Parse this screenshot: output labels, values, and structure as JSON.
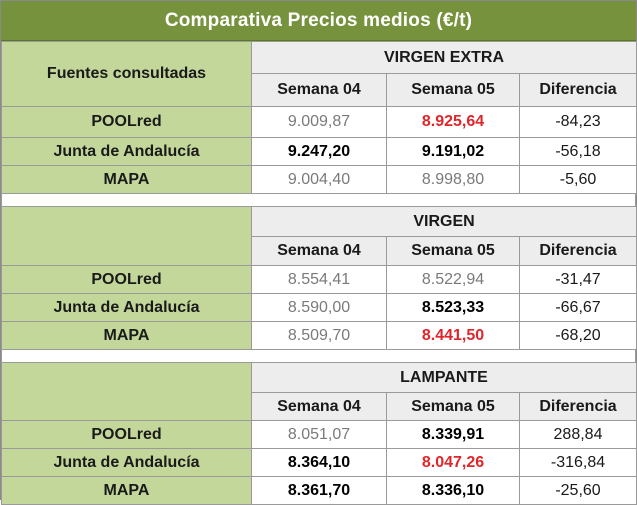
{
  "title": "Comparativa Precios  medios (€/t)",
  "sources_header": "Fuentes consultadas",
  "columns": [
    "Semana 04",
    "Semana 05",
    "Diferencia"
  ],
  "sections": [
    {
      "label": "VIRGEN EXTRA",
      "rows": [
        {
          "source": "POOLred",
          "w04": "9.009,87",
          "w05": "8.925,64",
          "diff": "-84,23",
          "w04_style": "normal",
          "w05_style": "red"
        },
        {
          "source": "Junta de Andalucía",
          "w04": "9.247,20",
          "w05": "9.191,02",
          "diff": "-56,18",
          "w04_style": "bold",
          "w05_style": "bold"
        },
        {
          "source": "MAPA",
          "w04": "9.004,40",
          "w05": "8.998,80",
          "diff": "-5,60",
          "w04_style": "normal",
          "w05_style": "normal"
        }
      ]
    },
    {
      "label": "VIRGEN",
      "rows": [
        {
          "source": "POOLred",
          "w04": "8.554,41",
          "w05": "8.522,94",
          "diff": "-31,47",
          "w04_style": "normal",
          "w05_style": "normal"
        },
        {
          "source": "Junta de Andalucía",
          "w04": "8.590,00",
          "w05": "8.523,33",
          "diff": "-66,67",
          "w04_style": "normal",
          "w05_style": "bold"
        },
        {
          "source": "MAPA",
          "w04": "8.509,70",
          "w05": "8.441,50",
          "diff": "-68,20",
          "w04_style": "normal",
          "w05_style": "red"
        }
      ]
    },
    {
      "label": "LAMPANTE",
      "rows": [
        {
          "source": "POOLred",
          "w04": "8.051,07",
          "w05": "8.339,91",
          "diff": "288,84",
          "w04_style": "normal",
          "w05_style": "bold"
        },
        {
          "source": "Junta de Andalucía",
          "w04": "8.364,10",
          "w05": "8.047,26",
          "diff": "-316,84",
          "w04_style": "bold",
          "w05_style": "red"
        },
        {
          "source": "MAPA",
          "w04": "8.361,70",
          "w05": "8.336,10",
          "diff": "-25,60",
          "w04_style": "bold",
          "w05_style": "bold"
        }
      ]
    }
  ],
  "colors": {
    "title_bg": "#76923c",
    "source_bg": "#c4d79b",
    "header_bg": "#ededed",
    "highlight_red": "#e0262b"
  }
}
